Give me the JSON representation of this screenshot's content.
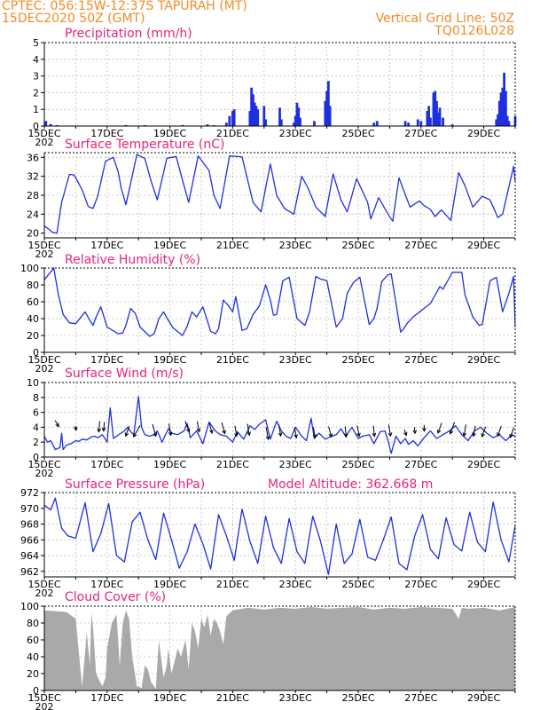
{
  "header": {
    "line1_left": "CPTEC:   056:15W-12:37S   TAPURAH (MT)",
    "line2_left": "15DEC2020  50Z  (GMT)",
    "line2_right": "Vertical Grid Line: 50Z",
    "line3_right": "TQ0126L028"
  },
  "x_axis": {
    "tick_labels": [
      "15DEC",
      "17DEC",
      "19DEC",
      "21DEC",
      "23DEC",
      "25DEC",
      "27DEC",
      "29DEC"
    ],
    "year_stub": "202"
  },
  "colors": {
    "header": "#f08a24",
    "title": "#e8247a",
    "series": "#1f2fe0",
    "cloud": "#a9a9a9",
    "grid": "#aaaaaa",
    "arrow": "#000000"
  },
  "chart_data": [
    {
      "id": "precip",
      "type": "bar",
      "title": "Precipitation (mm/h)",
      "xlabel": "",
      "ylabel": "",
      "ylim": [
        0,
        5
      ],
      "yticks": [
        0,
        1,
        2,
        3,
        4,
        5
      ],
      "x_unit": "days since 15DEC 00Z",
      "bars": [
        [
          0.05,
          0.3
        ],
        [
          0.2,
          0.12
        ],
        [
          0.4,
          0.05
        ],
        [
          2.6,
          0.06
        ],
        [
          3.2,
          0.05
        ],
        [
          4.4,
          0.06
        ],
        [
          5.2,
          0.1
        ],
        [
          5.4,
          0.05
        ],
        [
          5.8,
          0.2
        ],
        [
          5.9,
          0.6
        ],
        [
          6.0,
          0.9
        ],
        [
          6.05,
          1.0
        ],
        [
          6.55,
          0.9
        ],
        [
          6.6,
          2.3
        ],
        [
          6.65,
          1.9
        ],
        [
          6.7,
          1.4
        ],
        [
          6.75,
          1.2
        ],
        [
          6.8,
          1.0
        ],
        [
          7.0,
          1.2
        ],
        [
          7.05,
          0.4
        ],
        [
          7.5,
          1.1
        ],
        [
          7.55,
          0.4
        ],
        [
          7.95,
          0.2
        ],
        [
          8.0,
          0.6
        ],
        [
          8.05,
          1.4
        ],
        [
          8.1,
          1.1
        ],
        [
          8.15,
          0.5
        ],
        [
          8.6,
          0.3
        ],
        [
          8.95,
          1.5
        ],
        [
          9.0,
          2.1
        ],
        [
          9.05,
          2.7
        ],
        [
          9.1,
          1.2
        ],
        [
          10.5,
          0.2
        ],
        [
          10.6,
          0.3
        ],
        [
          11.5,
          0.3
        ],
        [
          11.6,
          0.2
        ],
        [
          11.9,
          0.4
        ],
        [
          12.0,
          0.3
        ],
        [
          12.2,
          0.9
        ],
        [
          12.25,
          1.2
        ],
        [
          12.3,
          0.5
        ],
        [
          12.4,
          2.0
        ],
        [
          12.45,
          2.1
        ],
        [
          12.5,
          1.5
        ],
        [
          12.55,
          0.8
        ],
        [
          12.6,
          1.1
        ],
        [
          12.7,
          0.5
        ],
        [
          13.0,
          0.1
        ],
        [
          14.4,
          0.4
        ],
        [
          14.45,
          0.7
        ],
        [
          14.5,
          1.5
        ],
        [
          14.55,
          2.0
        ],
        [
          14.6,
          2.3
        ],
        [
          14.65,
          3.2
        ],
        [
          14.7,
          2.1
        ],
        [
          14.75,
          0.6
        ],
        [
          14.8,
          0.3
        ],
        [
          15.0,
          0.6
        ]
      ]
    },
    {
      "id": "temp",
      "type": "line",
      "title": "Surface Temperature (nC)",
      "xlabel": "",
      "ylabel": "",
      "ylim": [
        19,
        37
      ],
      "yticks": [
        20,
        24,
        28,
        32,
        36
      ],
      "x": [
        0,
        0.15,
        0.25,
        0.4,
        0.55,
        0.8,
        0.95,
        1.2,
        1.4,
        1.55,
        1.7,
        1.95,
        2.2,
        2.35,
        2.45,
        2.6,
        2.95,
        3.2,
        3.4,
        3.6,
        3.9,
        4.2,
        4.4,
        4.6,
        4.9,
        5.25,
        5.4,
        5.6,
        5.9,
        6.3,
        6.45,
        6.65,
        6.9,
        7.2,
        7.4,
        7.65,
        7.95,
        8.2,
        8.4,
        8.65,
        8.95,
        9.2,
        9.45,
        9.65,
        9.95,
        10.3,
        10.4,
        10.65,
        10.95,
        11.1,
        11.3,
        11.45,
        11.65,
        11.95,
        12.1,
        12.3,
        12.45,
        12.65,
        12.95,
        13.2,
        13.4,
        13.65,
        13.95,
        14.2,
        14.45,
        14.6,
        14.95,
        15.0
      ],
      "series": [
        {
          "values": [
            21.5,
            20.8,
            20.2,
            20.0,
            26.5,
            32.4,
            32.3,
            29.2,
            25.6,
            25.2,
            27.8,
            35.2,
            36.0,
            33.0,
            29.5,
            26.0,
            36.6,
            35.8,
            31.0,
            27.0,
            35.8,
            36.2,
            31.2,
            26.5,
            36.3,
            33.2,
            28.0,
            25.2,
            36.3,
            36.1,
            32.0,
            26.5,
            24.5,
            34.6,
            28.0,
            25.2,
            24.0,
            32.0,
            29.5,
            25.5,
            23.5,
            32.5,
            27.0,
            24.5,
            31.5,
            26.5,
            23.0,
            27.5,
            24.0,
            22.5,
            31.7,
            29.0,
            25.5,
            26.8,
            25.8,
            25.0,
            23.5,
            24.9,
            22.7,
            32.8,
            30.0,
            25.5,
            27.8,
            27.0,
            23.3,
            24.0,
            34.1,
            31.0
          ]
        }
      ]
    },
    {
      "id": "rh",
      "type": "line",
      "title": "Relative Humidity (%)",
      "xlabel": "",
      "ylabel": "",
      "ylim": [
        0,
        100
      ],
      "yticks": [
        0,
        20,
        40,
        60,
        80,
        100
      ],
      "x": [
        0,
        0.3,
        0.45,
        0.6,
        0.8,
        1.0,
        1.3,
        1.45,
        1.55,
        1.65,
        1.8,
        2.0,
        2.35,
        2.5,
        2.6,
        2.75,
        2.9,
        3.05,
        3.35,
        3.5,
        3.65,
        3.8,
        3.95,
        4.1,
        4.4,
        4.55,
        4.7,
        4.85,
        5.05,
        5.3,
        5.45,
        5.55,
        5.7,
        5.85,
        6.0,
        6.1,
        6.3,
        6.45,
        6.65,
        6.85,
        7.05,
        7.2,
        7.3,
        7.4,
        7.6,
        7.8,
        8.05,
        8.3,
        8.45,
        8.65,
        8.8,
        9.0,
        9.3,
        9.5,
        9.65,
        9.85,
        10.05,
        10.35,
        10.5,
        10.6,
        10.75,
        10.95,
        11.05,
        11.35,
        11.45,
        11.55,
        11.75,
        12.3,
        12.6,
        12.7,
        13.0,
        13.3,
        13.4,
        13.65,
        13.85,
        13.95,
        14.2,
        14.4,
        14.6,
        14.8,
        14.95,
        15.0
      ],
      "series": [
        {
          "values": [
            86,
            100,
            68,
            45,
            35,
            34,
            48,
            38,
            32,
            42,
            54,
            30,
            22,
            23,
            32,
            52,
            46,
            30,
            19,
            22,
            40,
            48,
            38,
            29,
            20,
            31,
            48,
            42,
            54,
            25,
            22,
            28,
            62,
            56,
            48,
            66,
            26,
            28,
            45,
            55,
            80,
            62,
            44,
            45,
            85,
            89,
            40,
            32,
            48,
            90,
            87,
            85,
            30,
            40,
            70,
            83,
            89,
            33,
            40,
            52,
            84,
            92,
            93,
            24,
            28,
            34,
            42,
            58,
            78,
            75,
            95,
            95,
            68,
            42,
            32,
            33,
            85,
            89,
            48,
            70,
            90,
            30
          ]
        }
      ]
    },
    {
      "id": "wind",
      "type": "line",
      "title": "Surface Wind (m/s)",
      "xlabel": "",
      "ylabel": "",
      "ylim": [
        0,
        10
      ],
      "yticks": [
        0,
        2,
        4,
        6,
        8,
        10
      ],
      "x": [
        0,
        0.1,
        0.2,
        0.35,
        0.5,
        0.55,
        0.6,
        0.7,
        0.85,
        1.0,
        1.1,
        1.2,
        1.35,
        1.5,
        1.6,
        1.7,
        1.85,
        2.0,
        2.1,
        2.2,
        2.4,
        2.55,
        2.65,
        2.75,
        2.85,
        3.0,
        3.1,
        3.2,
        3.35,
        3.5,
        3.6,
        3.75,
        3.95,
        4.05,
        4.25,
        4.45,
        4.55,
        4.65,
        4.85,
        5.05,
        5.25,
        5.45,
        5.6,
        5.8,
        6.0,
        6.15,
        6.35,
        6.55,
        6.7,
        6.85,
        7.05,
        7.2,
        7.4,
        7.55,
        7.7,
        7.85,
        8.0,
        8.2,
        8.35,
        8.5,
        8.6,
        8.75,
        8.95,
        9.1,
        9.3,
        9.45,
        9.6,
        9.8,
        10.0,
        10.15,
        10.35,
        10.5,
        10.7,
        10.85,
        10.95,
        11.05,
        11.2,
        11.35,
        11.5,
        11.6,
        11.75,
        11.9,
        12.1,
        12.3,
        12.5,
        12.7,
        12.9,
        13.1,
        13.3,
        13.5,
        13.7,
        13.9,
        14.1,
        14.3,
        14.5,
        14.7,
        14.9,
        15.0
      ],
      "series": [
        {
          "values": [
            2.8,
            2.0,
            2.2,
            1.0,
            1.3,
            3.2,
            1.0,
            1.6,
            1.8,
            2.2,
            2.1,
            2.4,
            2.3,
            2.7,
            2.8,
            2.6,
            3.0,
            2.0,
            6.6,
            2.5,
            3.1,
            3.5,
            4.0,
            3.4,
            3.0,
            8.1,
            4.0,
            3.0,
            2.8,
            3.0,
            3.5,
            2.0,
            3.8,
            3.2,
            3.0,
            3.5,
            4.5,
            2.6,
            3.5,
            1.8,
            4.7,
            3.5,
            3.0,
            2.8,
            2.0,
            3.4,
            2.4,
            4.2,
            3.7,
            4.4,
            5.0,
            2.4,
            4.8,
            3.5,
            2.8,
            2.5,
            4.0,
            2.8,
            2.2,
            5.2,
            2.5,
            3.2,
            2.4,
            2.7,
            3.0,
            3.8,
            2.8,
            4.0,
            2.5,
            2.8,
            3.0,
            1.8,
            3.4,
            3.5,
            2.2,
            0.5,
            2.8,
            1.8,
            2.5,
            1.7,
            2.2,
            1.5,
            2.6,
            3.5,
            2.5,
            3.0,
            3.5,
            4.2,
            3.0,
            2.2,
            3.5,
            4.0,
            3.2,
            2.6,
            3.0,
            2.2,
            3.0,
            2.8
          ]
        }
      ],
      "arrows": {
        "x": [
          0.4,
          1.0,
          1.75,
          1.9,
          2.65,
          2.95,
          3.5,
          4.0,
          4.55,
          4.9,
          5.3,
          5.7,
          6.1,
          6.5,
          7.1,
          7.5,
          8.0,
          8.6,
          9.1,
          9.6,
          10.0,
          10.5,
          11.0,
          11.5,
          11.8,
          12.1,
          12.6,
          13.0,
          13.4,
          13.7,
          14.0,
          14.5,
          14.9
        ],
        "y": [
          4.5,
          3.9,
          4.1,
          4.1,
          3.5,
          3.5,
          3.6,
          3.7,
          4.1,
          4.1,
          3.9,
          3.9,
          3.5,
          3.7,
          3.2,
          3.6,
          3.3,
          3.3,
          3.4,
          3.4,
          3.5,
          3.5,
          3.6,
          3.3,
          3.6,
          3.9,
          3.9,
          3.9,
          3.6,
          3.5,
          3.4,
          3.5,
          3.3
        ],
        "dir": [
          150,
          170,
          185,
          185,
          200,
          210,
          165,
          170,
          160,
          170,
          165,
          165,
          170,
          170,
          170,
          170,
          170,
          170,
          165,
          175,
          170,
          175,
          170,
          160,
          175,
          180,
          200,
          200,
          190,
          190,
          200,
          200,
          200
        ],
        "len": [
          8,
          5,
          12,
          10,
          12,
          15,
          14,
          13,
          13,
          12,
          12,
          13,
          12,
          13,
          14,
          13,
          12,
          12,
          12,
          12,
          12,
          12,
          13,
          7,
          7,
          7,
          12,
          14,
          13,
          12,
          12,
          12,
          12
        ]
      }
    },
    {
      "id": "pres",
      "type": "line",
      "title": "Surface Pressure (hPa)",
      "subtitle": "Model Altitude: 362.668  m",
      "xlabel": "",
      "ylabel": "",
      "ylim": [
        961.3,
        972
      ],
      "yticks": [
        962,
        964,
        966,
        968,
        970,
        972
      ],
      "x": [
        0,
        0.2,
        0.35,
        0.55,
        0.75,
        1.0,
        1.3,
        1.55,
        1.8,
        2.05,
        2.3,
        2.55,
        2.8,
        3.05,
        3.3,
        3.55,
        3.8,
        4.05,
        4.3,
        4.55,
        4.8,
        5.05,
        5.3,
        5.55,
        5.8,
        6.05,
        6.3,
        6.55,
        6.8,
        7.05,
        7.3,
        7.55,
        7.8,
        8.05,
        8.3,
        8.55,
        8.8,
        9.05,
        9.3,
        9.55,
        9.8,
        10.05,
        10.3,
        10.55,
        10.8,
        11.05,
        11.3,
        11.55,
        11.8,
        12.05,
        12.3,
        12.55,
        12.8,
        13.05,
        13.3,
        13.55,
        13.8,
        14.05,
        14.3,
        14.55,
        14.8,
        15.0
      ],
      "series": [
        {
          "values": [
            970.4,
            969.8,
            971.3,
            967.5,
            966.5,
            966.2,
            970.7,
            964.5,
            966.8,
            970.6,
            964.0,
            963.2,
            968.3,
            969.5,
            966.0,
            963.5,
            969.4,
            966.0,
            962.4,
            964.5,
            968.0,
            965.5,
            962.3,
            969.2,
            966.5,
            963.4,
            969.9,
            965.8,
            963.0,
            969.0,
            965.0,
            963.0,
            968.7,
            964.5,
            963.0,
            969.0,
            965.8,
            961.6,
            968.0,
            963.0,
            964.2,
            968.6,
            963.8,
            963.4,
            966.0,
            968.9,
            963.0,
            962.2,
            966.5,
            969.2,
            964.8,
            963.6,
            968.8,
            965.4,
            964.6,
            969.5,
            965.7,
            964.5,
            970.8,
            966.0,
            963.2,
            967.8
          ]
        }
      ]
    },
    {
      "id": "cloud",
      "type": "area",
      "title": "Cloud Cover (%)",
      "xlabel": "",
      "ylabel": "",
      "ylim": [
        0,
        100
      ],
      "yticks": [
        0,
        20,
        40,
        60,
        80,
        100
      ],
      "x": [
        0,
        0.4,
        0.7,
        1.0,
        1.2,
        1.3,
        1.35,
        1.45,
        1.5,
        1.55,
        1.65,
        1.75,
        1.85,
        1.95,
        2.0,
        2.05,
        2.15,
        2.3,
        2.4,
        2.5,
        2.6,
        2.7,
        2.8,
        2.95,
        3.1,
        3.2,
        3.3,
        3.4,
        3.55,
        3.65,
        3.7,
        3.8,
        3.9,
        3.95,
        4.05,
        4.15,
        4.25,
        4.35,
        4.5,
        4.6,
        4.7,
        4.8,
        4.9,
        5.0,
        5.1,
        5.2,
        5.3,
        5.4,
        5.5,
        5.6,
        5.7,
        5.8,
        6.0,
        6.3,
        6.5,
        7.0,
        7.5,
        8.0,
        8.5,
        9.0,
        9.5,
        10.0,
        10.5,
        11.0,
        11.5,
        12.0,
        12.5,
        13.0,
        13.2,
        13.3,
        13.5,
        14.0,
        14.5,
        15.0
      ],
      "series": [
        {
          "values": [
            95,
            94,
            93,
            85,
            5,
            45,
            70,
            30,
            92,
            75,
            20,
            12,
            5,
            15,
            50,
            60,
            80,
            90,
            30,
            80,
            95,
            85,
            40,
            5,
            3,
            30,
            25,
            10,
            2,
            60,
            45,
            15,
            30,
            50,
            20,
            35,
            50,
            40,
            60,
            25,
            80,
            70,
            50,
            85,
            75,
            90,
            65,
            85,
            80,
            70,
            55,
            88,
            95,
            97,
            98,
            96,
            98,
            97,
            99,
            97,
            98,
            99,
            96,
            98,
            97,
            99,
            98,
            97,
            85,
            98,
            97,
            98,
            95,
            99
          ]
        }
      ]
    }
  ]
}
